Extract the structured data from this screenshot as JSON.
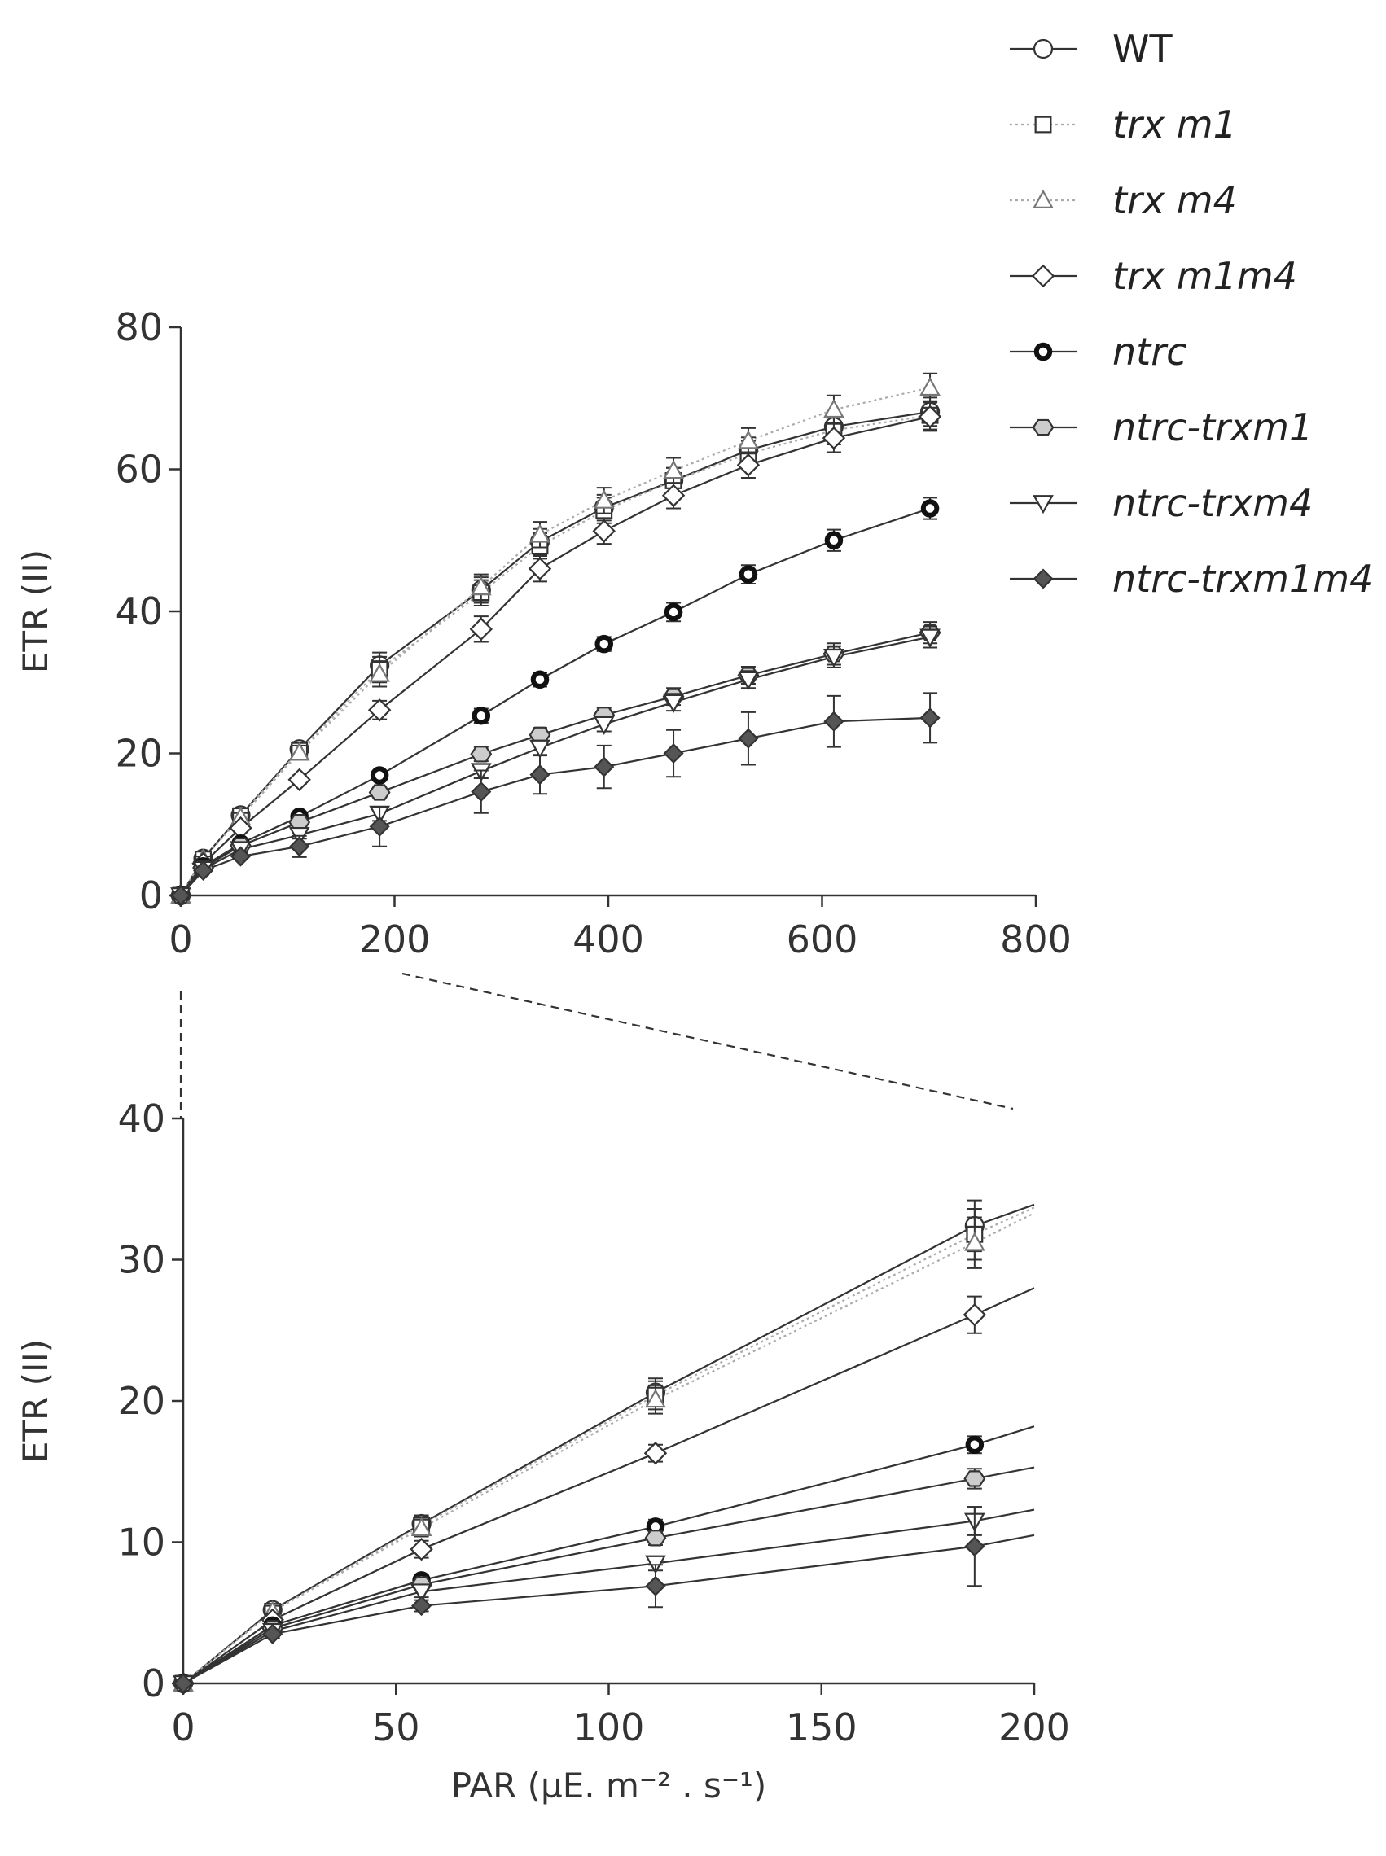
{
  "legend": [
    {
      "name": "WT",
      "style": "plain"
    },
    {
      "name": "trx m1",
      "style": "italic"
    },
    {
      "name": "trx m4",
      "style": "italic"
    },
    {
      "name": "trx m1m4",
      "style": "italic"
    },
    {
      "name": "ntrc",
      "style": "italic"
    },
    {
      "name": "ntrc-trxm1",
      "style": "italic"
    },
    {
      "name": "ntrc-trxm4",
      "style": "italic"
    },
    {
      "name": "ntrc-trxm1m4",
      "style": "italic"
    }
  ],
  "colors": {
    "dark": "#333333",
    "gray": "#777777",
    "light_gray": "#aaaaaa",
    "fill_gray": "#cccccc",
    "fill_dark": "#555555"
  },
  "chart_data": [
    {
      "type": "line",
      "id": "top",
      "xlabel": "",
      "ylabel": "ETR (II)",
      "xlim": [
        0,
        800
      ],
      "ylim": [
        0,
        80
      ],
      "xticks": [
        0,
        200,
        400,
        600,
        800
      ],
      "yticks": [
        0,
        20,
        40,
        60,
        80
      ],
      "x": [
        0,
        21,
        56,
        111,
        186,
        281,
        336,
        396,
        461,
        531,
        611,
        701
      ],
      "series": [
        {
          "name": "WT",
          "marker": "circle",
          "values": [
            0,
            5.2,
            11.3,
            20.6,
            32.4,
            43.0,
            49.8,
            54.6,
            58.4,
            62.7,
            66.0,
            68.1
          ],
          "errors": [
            0.3,
            0.4,
            0.6,
            1.0,
            1.8,
            1.8,
            1.8,
            1.8,
            1.8,
            1.8,
            2.0,
            2.0
          ]
        },
        {
          "name": "trx m1",
          "marker": "square",
          "values": [
            0,
            5.1,
            11.2,
            20.4,
            31.8,
            42.6,
            49.2,
            54.2,
            58.4,
            62.2,
            65.5,
            67.6
          ],
          "errors": [
            0.3,
            0.4,
            0.6,
            1.0,
            1.8,
            1.8,
            1.8,
            1.8,
            1.8,
            1.8,
            2.0,
            2.0
          ]
        },
        {
          "name": "trx m4",
          "marker": "triangle-up",
          "values": [
            0,
            5.1,
            11.0,
            20.1,
            31.2,
            43.4,
            50.8,
            55.6,
            59.8,
            64.0,
            68.4,
            71.5
          ],
          "errors": [
            0.3,
            0.4,
            0.6,
            1.0,
            1.8,
            1.8,
            1.8,
            1.8,
            1.8,
            1.8,
            2.0,
            2.0
          ]
        },
        {
          "name": "trx m1m4",
          "marker": "diamond",
          "values": [
            0,
            4.5,
            9.5,
            16.3,
            26.1,
            37.5,
            46.0,
            51.3,
            56.3,
            60.6,
            64.4,
            67.4
          ],
          "errors": [
            0.3,
            0.4,
            0.6,
            0.6,
            1.3,
            1.8,
            1.8,
            1.8,
            1.8,
            1.8,
            2.0,
            2.0
          ]
        },
        {
          "name": "ntrc",
          "marker": "circle-bold",
          "values": [
            0,
            4.1,
            7.3,
            11.1,
            16.9,
            25.3,
            30.4,
            35.4,
            39.9,
            45.2,
            50.0,
            54.5
          ],
          "errors": [
            0.2,
            0.3,
            0.4,
            0.5,
            0.6,
            1.0,
            1.0,
            1.0,
            1.3,
            1.3,
            1.5,
            1.5
          ]
        },
        {
          "name": "ntrc-trxm1",
          "marker": "hexagon",
          "values": [
            0,
            3.9,
            7.0,
            10.3,
            14.5,
            19.9,
            22.6,
            25.4,
            28.0,
            31.0,
            34.0,
            37.0
          ],
          "errors": [
            0.2,
            0.3,
            0.4,
            0.5,
            0.7,
            1.0,
            1.0,
            1.0,
            1.2,
            1.2,
            1.5,
            1.5
          ]
        },
        {
          "name": "ntrc-trxm4",
          "marker": "triangle-down",
          "values": [
            0,
            3.7,
            6.5,
            8.5,
            11.5,
            17.5,
            20.8,
            24.1,
            27.2,
            30.4,
            33.6,
            36.4
          ],
          "errors": [
            0.2,
            0.3,
            0.4,
            0.5,
            1.0,
            1.0,
            1.0,
            1.0,
            1.2,
            1.2,
            1.5,
            1.5
          ]
        },
        {
          "name": "ntrc-trxm1m4",
          "marker": "diamond-filled",
          "values": [
            0,
            3.5,
            5.5,
            6.9,
            9.7,
            14.6,
            17.0,
            18.1,
            20.0,
            22.1,
            24.5,
            25.0
          ],
          "errors": [
            0.2,
            0.3,
            0.4,
            1.5,
            2.8,
            3.0,
            2.7,
            3.0,
            3.3,
            3.7,
            3.6,
            3.5
          ]
        }
      ]
    },
    {
      "type": "line",
      "id": "bottom",
      "xlabel": "PAR (µE. m⁻² . s⁻¹)",
      "ylabel": "ETR (II)",
      "xlim": [
        0,
        200
      ],
      "ylim": [
        0,
        40
      ],
      "xticks": [
        0,
        50,
        100,
        150,
        200
      ],
      "yticks": [
        0,
        10,
        20,
        30,
        40
      ],
      "x": [
        0,
        21,
        56,
        111,
        186
      ],
      "extend_to": 200,
      "series": [
        {
          "name": "WT",
          "marker": "circle",
          "values": [
            0,
            5.2,
            11.3,
            20.6,
            32.4
          ],
          "errors": [
            0.3,
            0.4,
            0.6,
            1.0,
            1.8
          ],
          "end": 33.9
        },
        {
          "name": "trx m1",
          "marker": "square",
          "values": [
            0,
            5.1,
            11.2,
            20.4,
            31.8
          ],
          "errors": [
            0.3,
            0.4,
            0.6,
            1.0,
            1.8
          ],
          "end": 33.7
        },
        {
          "name": "trx m4",
          "marker": "triangle-up",
          "values": [
            0,
            5.1,
            11.0,
            20.1,
            31.2
          ],
          "errors": [
            0.3,
            0.4,
            0.6,
            1.0,
            1.8
          ],
          "end": 33.3
        },
        {
          "name": "trx m1m4",
          "marker": "diamond",
          "values": [
            0,
            4.5,
            9.5,
            16.3,
            26.1
          ],
          "errors": [
            0.3,
            0.4,
            0.6,
            0.6,
            1.3
          ],
          "end": 28.0
        },
        {
          "name": "ntrc",
          "marker": "circle-bold",
          "values": [
            0,
            4.1,
            7.3,
            11.1,
            16.9
          ],
          "errors": [
            0.2,
            0.3,
            0.4,
            0.5,
            0.6
          ],
          "end": 18.2
        },
        {
          "name": "ntrc-trxm1",
          "marker": "hexagon",
          "values": [
            0,
            3.9,
            7.0,
            10.3,
            14.5
          ],
          "errors": [
            0.2,
            0.3,
            0.4,
            0.5,
            0.7
          ],
          "end": 15.3
        },
        {
          "name": "ntrc-trxm4",
          "marker": "triangle-down",
          "values": [
            0,
            3.7,
            6.5,
            8.5,
            11.5
          ],
          "errors": [
            0.2,
            0.3,
            0.4,
            0.5,
            1.0
          ],
          "end": 12.3
        },
        {
          "name": "ntrc-trxm1m4",
          "marker": "diamond-filled",
          "values": [
            0,
            3.5,
            5.5,
            6.9,
            9.7
          ],
          "errors": [
            0.2,
            0.3,
            0.4,
            1.5,
            2.8
          ],
          "end": 10.5
        }
      ]
    }
  ]
}
